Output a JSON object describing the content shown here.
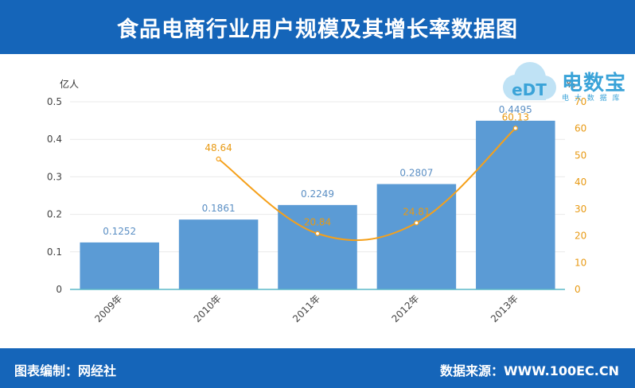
{
  "header": {
    "title": "食品电商行业用户规模及其增长率数据图"
  },
  "footer": {
    "left": "图表编制：网经社",
    "right": "数据来源：WWW.100EC.CN"
  },
  "logo": {
    "brand": "电数宝",
    "sub": "电 大 数 据 库",
    "mark": "eDT"
  },
  "colors": {
    "header": "#1565b9",
    "bar": "#5b9bd5",
    "line": "#f5a01a",
    "bar_label": "#5b8fc4"
  },
  "chart_data": {
    "type": "bar",
    "categories": [
      "2009年",
      "2010年",
      "2011年",
      "2012年",
      "2013年"
    ],
    "series": [
      {
        "name": "用户规模",
        "type": "bar",
        "axis": "left",
        "values": [
          0.1252,
          0.1861,
          0.2249,
          0.2807,
          0.4495
        ]
      },
      {
        "name": "增长率",
        "type": "line",
        "axis": "right",
        "values": [
          null,
          48.64,
          20.84,
          24.81,
          60.13
        ]
      }
    ],
    "ylabel": "亿人",
    "ylim": [
      0,
      0.5
    ],
    "yticks": [
      "0",
      "0.1",
      "0.2",
      "0.3",
      "0.4",
      "0.5"
    ],
    "y2label": "%",
    "y2lim": [
      0,
      70
    ],
    "y2ticks": [
      "0",
      "10",
      "20",
      "30",
      "40",
      "50",
      "60",
      "70"
    ],
    "bar_labels": [
      "0.1252",
      "0.1861",
      "0.2249",
      "0.2807",
      "0.4495"
    ],
    "line_labels": [
      "",
      "48.64",
      "20.84",
      "24.81",
      "60.13"
    ],
    "grid": true,
    "legend": "none"
  }
}
